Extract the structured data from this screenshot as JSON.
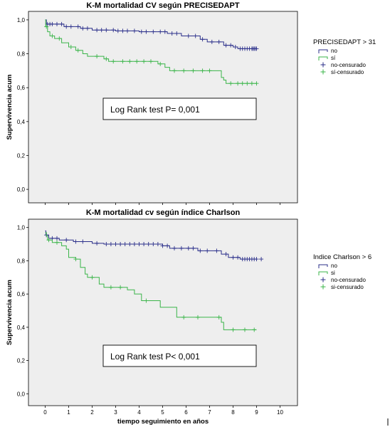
{
  "chart_data": [
    {
      "type": "line",
      "title": "K-M mortalidad CV según PRECISEDAPT",
      "ylabel": "Supervivencia acum",
      "xlabel": "",
      "xlim": [
        -0.5,
        10.5
      ],
      "ylim": [
        -0.05,
        1.05
      ],
      "yticks": [
        "0,0",
        "0,2",
        "0,4",
        "0,6",
        "0,8",
        "1,0"
      ],
      "grid": false,
      "legend": {
        "title": "PRECISEDAPT > 31",
        "placement": "right",
        "entries": [
          "no",
          "sí",
          "no-censurado",
          "sí-censurado"
        ]
      },
      "annotation": "Log Rank test P= 0,001",
      "colors": {
        "no": "#2b2f8a",
        "si": "#3bb54a"
      },
      "series": [
        {
          "name": "no",
          "steps": [
            [
              0,
              1.0
            ],
            [
              0.05,
              0.975
            ],
            [
              0.8,
              0.96
            ],
            [
              1.5,
              0.95
            ],
            [
              2.0,
              0.94
            ],
            [
              3.0,
              0.935
            ],
            [
              4.0,
              0.93
            ],
            [
              5.2,
              0.92
            ],
            [
              5.8,
              0.905
            ],
            [
              6.6,
              0.885
            ],
            [
              6.9,
              0.87
            ],
            [
              7.6,
              0.85
            ],
            [
              8.0,
              0.84
            ],
            [
              8.2,
              0.83
            ],
            [
              9.0,
              0.83
            ]
          ],
          "censored": [
            0.1,
            0.2,
            0.3,
            0.5,
            0.7,
            0.9,
            1.1,
            1.4,
            1.6,
            1.8,
            2.2,
            2.4,
            2.6,
            2.9,
            3.1,
            3.3,
            3.5,
            3.8,
            4.1,
            4.3,
            4.6,
            4.9,
            5.1,
            5.4,
            5.6,
            6.1,
            6.4,
            6.7,
            7.1,
            7.4,
            7.7,
            7.9,
            8.1,
            8.3,
            8.4,
            8.5,
            8.6,
            8.7,
            8.8,
            8.85,
            8.9,
            8.95,
            9.0
          ]
        },
        {
          "name": "sí",
          "steps": [
            [
              0,
              1.0
            ],
            [
              0.02,
              0.96
            ],
            [
              0.1,
              0.93
            ],
            [
              0.2,
              0.905
            ],
            [
              0.4,
              0.89
            ],
            [
              0.7,
              0.865
            ],
            [
              1.0,
              0.84
            ],
            [
              1.3,
              0.82
            ],
            [
              1.6,
              0.8
            ],
            [
              1.8,
              0.785
            ],
            [
              2.5,
              0.77
            ],
            [
              2.7,
              0.755
            ],
            [
              4.8,
              0.74
            ],
            [
              5.1,
              0.72
            ],
            [
              5.3,
              0.7
            ],
            [
              7.5,
              0.66
            ],
            [
              7.6,
              0.645
            ],
            [
              7.7,
              0.625
            ],
            [
              9.0,
              0.625
            ]
          ],
          "censored": [
            0.05,
            0.3,
            0.6,
            1.1,
            1.4,
            2.2,
            2.6,
            2.9,
            3.3,
            3.6,
            3.9,
            4.2,
            4.5,
            4.9,
            5.5,
            5.9,
            6.3,
            6.7,
            7.0,
            7.9,
            8.2,
            8.4,
            8.6,
            8.8,
            9.0
          ]
        }
      ]
    },
    {
      "type": "line",
      "title": "K-M mortalidad cv según índice Charlson",
      "ylabel": "Supervivencia acum",
      "xlabel": "tiempo seguimiento en años",
      "xticks": [
        "0",
        "1",
        "2",
        "3",
        "4",
        "5",
        "6",
        "7",
        "8",
        "9",
        "10"
      ],
      "xlim": [
        -0.5,
        10.5
      ],
      "ylim": [
        -0.05,
        1.05
      ],
      "yticks": [
        "0,0",
        "0,2",
        "0,4",
        "0,6",
        "0,8",
        "1,0"
      ],
      "grid": false,
      "legend": {
        "title": "Indice Charlson > 6",
        "placement": "right",
        "entries": [
          "no",
          "si",
          "no-censurado",
          "si-censurado"
        ]
      },
      "annotation": "Log Rank test P< 0,001",
      "colors": {
        "no": "#2b2f8a",
        "si": "#3bb54a"
      },
      "series": [
        {
          "name": "no",
          "steps": [
            [
              0,
              0.98
            ],
            [
              0.03,
              0.955
            ],
            [
              0.15,
              0.935
            ],
            [
              0.6,
              0.925
            ],
            [
              1.2,
              0.915
            ],
            [
              2.0,
              0.905
            ],
            [
              2.5,
              0.9
            ],
            [
              5.0,
              0.89
            ],
            [
              5.3,
              0.875
            ],
            [
              6.5,
              0.86
            ],
            [
              7.5,
              0.84
            ],
            [
              7.8,
              0.82
            ],
            [
              8.3,
              0.81
            ],
            [
              9.0,
              0.81
            ]
          ],
          "censored": [
            0.05,
            0.3,
            0.5,
            0.9,
            1.3,
            1.6,
            2.2,
            2.6,
            2.8,
            3.0,
            3.2,
            3.4,
            3.6,
            3.8,
            4.0,
            4.2,
            4.4,
            4.6,
            4.8,
            5.0,
            5.2,
            5.5,
            5.8,
            6.1,
            6.3,
            6.6,
            6.9,
            7.3,
            7.7,
            8.0,
            8.2,
            8.4,
            8.5,
            8.6,
            8.7,
            8.8,
            8.9,
            9.0,
            9.2
          ]
        },
        {
          "name": "si",
          "steps": [
            [
              0,
              0.97
            ],
            [
              0.05,
              0.95
            ],
            [
              0.1,
              0.925
            ],
            [
              0.3,
              0.91
            ],
            [
              0.7,
              0.89
            ],
            [
              0.9,
              0.87
            ],
            [
              1.0,
              0.82
            ],
            [
              1.3,
              0.81
            ],
            [
              1.5,
              0.76
            ],
            [
              1.7,
              0.72
            ],
            [
              1.8,
              0.7
            ],
            [
              2.3,
              0.66
            ],
            [
              2.5,
              0.64
            ],
            [
              3.5,
              0.625
            ],
            [
              3.8,
              0.6
            ],
            [
              4.1,
              0.56
            ],
            [
              4.9,
              0.52
            ],
            [
              5.6,
              0.46
            ],
            [
              7.5,
              0.43
            ],
            [
              7.6,
              0.385
            ],
            [
              9.0,
              0.385
            ]
          ],
          "censored": [
            0.15,
            0.5,
            1.3,
            2.0,
            2.8,
            3.2,
            4.3,
            5.9,
            6.5,
            7.4,
            8.0,
            8.5,
            8.9
          ]
        }
      ]
    }
  ]
}
